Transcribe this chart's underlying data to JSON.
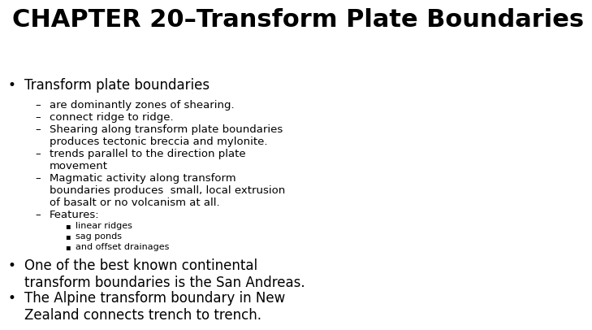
{
  "title": "CHAPTER 20–Transform Plate Boundaries",
  "title_fontsize": 22,
  "background_color": "#ffffff",
  "text_color": "#000000",
  "bullet1": "Transform plate boundaries",
  "bullet1_fontsize": 12,
  "sub_bullets": [
    "are dominantly zones of shearing.",
    "connect ridge to ridge.",
    "Shearing along transform plate boundaries\nproduces tectonic breccia and mylonite.",
    "trends parallel to the direction plate\nmovement",
    "Magmatic activity along transform\nboundaries produces  small, local extrusion\nof basalt or no volcanism at all.",
    "Features:"
  ],
  "sub_sub_bullets": [
    "linear ridges",
    "sag ponds",
    "and offset drainages"
  ],
  "bullet2": "One of the best known continental\ntransform boundaries is the San Andreas.",
  "bullet3": "The Alpine transform boundary in New\nZealand connects trench to trench.",
  "body_fontsize": 9.5,
  "small_fontsize": 8,
  "bullet_main_fontsize": 12
}
